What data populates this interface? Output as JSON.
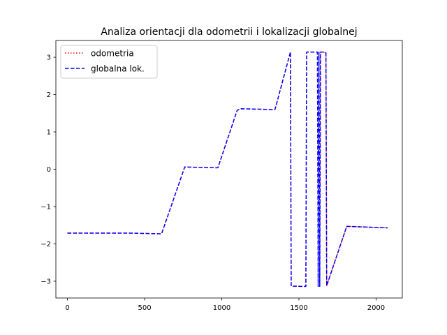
{
  "chart_data": {
    "type": "line",
    "title": "Analiza orientacji dla odometrii i lokalizacji globalnej",
    "xlabel": "",
    "ylabel": "",
    "xlim": [
      -75,
      2170
    ],
    "ylim": [
      -3.45,
      3.45
    ],
    "x_ticks": [
      0,
      500,
      1000,
      1500,
      2000
    ],
    "x_tick_labels": [
      "0",
      "500",
      "1000",
      "1500",
      "2000"
    ],
    "y_ticks": [
      -3,
      -2,
      -1,
      0,
      1,
      2,
      3
    ],
    "y_tick_labels": [
      "−3",
      "−2",
      "−1",
      "0",
      "1",
      "2",
      "3"
    ],
    "grid": false,
    "legend_position": "top-left",
    "series": [
      {
        "name": "odometria",
        "color": "#ff0000",
        "style": "dotted",
        "x": [
          0,
          400,
          600,
          610,
          760,
          960,
          975,
          1100,
          1125,
          1330,
          1345,
          1445,
          1450,
          1520,
          1545,
          1550,
          1620,
          1625,
          1635,
          1640,
          1660,
          1665,
          1675,
          1680,
          1810,
          2075
        ],
        "y": [
          -1.71,
          -1.71,
          -1.73,
          -1.73,
          0.06,
          0.04,
          0.04,
          1.58,
          1.62,
          1.6,
          1.6,
          3.14,
          -3.13,
          -3.14,
          -3.14,
          3.14,
          3.14,
          -3.14,
          -3.14,
          3.14,
          3.14,
          3.13,
          3.12,
          -3.12,
          -1.53,
          -1.57
        ]
      },
      {
        "name": "globalna lok.",
        "color": "#0000ff",
        "style": "dashed",
        "x": [
          0,
          400,
          600,
          610,
          760,
          960,
          975,
          1100,
          1125,
          1330,
          1345,
          1445,
          1450,
          1520,
          1545,
          1550,
          1620,
          1625,
          1630,
          1635,
          1640,
          1660,
          1665,
          1675,
          1680,
          1810,
          2075
        ],
        "y": [
          -1.71,
          -1.71,
          -1.73,
          -1.73,
          0.06,
          0.04,
          0.04,
          1.58,
          1.62,
          1.6,
          1.6,
          3.14,
          -3.13,
          -3.14,
          -3.14,
          3.14,
          3.14,
          -3.14,
          3.14,
          -3.14,
          3.14,
          3.14,
          3.13,
          3.12,
          -3.12,
          -1.53,
          -1.57
        ]
      }
    ]
  }
}
